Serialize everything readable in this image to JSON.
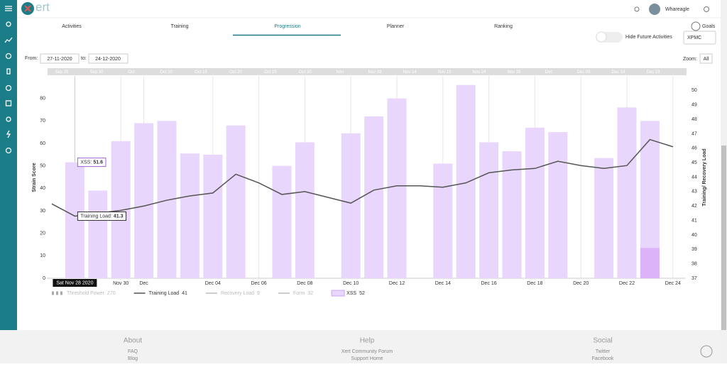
{
  "app": {
    "logo": "ert",
    "user": "Whareagle",
    "tabs": [
      "Activities",
      "Training",
      "Progression",
      "Planner",
      "Ranking"
    ],
    "goals": "Goals",
    "hide_future": "Hide Future Activities",
    "metric": "XPMC",
    "from_label": "From:",
    "from": "27-11-2020",
    "to_label": "to:",
    "to": "24-12-2020",
    "zoom_label": "Zoom:",
    "zoom": "All",
    "navigator": [
      "Sep 25",
      "Sep 30",
      "Oct",
      "Oct 10",
      "Oct 15",
      "Oct 20",
      "Oct 25",
      "Oct 30",
      "Nov",
      "Nov 09",
      "Nov 14",
      "Nov 19",
      "Nov 24",
      "Nov 29",
      "Dec",
      "Dec 09",
      "Dec 14",
      "Dec 19"
    ],
    "footer": [
      {
        "title": "About",
        "links": [
          "FAQ",
          "Blog"
        ]
      },
      {
        "title": "Help",
        "links": [
          "Xert Community Forum",
          "Support Home"
        ]
      },
      {
        "title": "Social",
        "links": [
          "Twitter",
          "Facebook"
        ]
      }
    ]
  },
  "chart_data": {
    "type": "bar",
    "categories": [
      null,
      null,
      null,
      "Nov 30",
      "Dec",
      null,
      null,
      "Dec 04",
      null,
      "Dec 06",
      null,
      "Dec 08",
      null,
      "Dec 10",
      null,
      "Dec 12",
      null,
      "Dec 14",
      null,
      "Dec 16",
      null,
      "Dec 18",
      null,
      "Dec 20",
      null,
      "Dec 22",
      null,
      "Dec 24"
    ],
    "ylabel": "Strain Score",
    "y2label": "Training/ Recovery Load",
    "ylim": [
      0,
      90
    ],
    "yticks": [
      0,
      10,
      20,
      30,
      40,
      50,
      60,
      70,
      80
    ],
    "y2lim": [
      37,
      51
    ],
    "y2ticks": [
      37,
      38,
      39,
      40,
      41,
      42,
      43,
      44,
      45,
      46,
      47,
      48,
      49,
      50
    ],
    "grid": true,
    "series": [
      {
        "name": "Threshold Power",
        "type": "line",
        "visible": false,
        "color": "#bbbbbb",
        "legend_value": 270
      },
      {
        "name": "Training Load",
        "type": "line",
        "axis": "y2",
        "visible": true,
        "color": "#555555",
        "legend_value": 41,
        "values": [
          42.15,
          41.3,
          41.5,
          41.7,
          42.0,
          42.4,
          42.7,
          42.9,
          44.2,
          43.6,
          42.8,
          43.0,
          42.6,
          42.2,
          43.1,
          43.4,
          43.4,
          43.3,
          43.6,
          44.3,
          44.5,
          44.6,
          45.1,
          44.8,
          44.6,
          44.8,
          46.6,
          46.1
        ]
      },
      {
        "name": "Recovery Load",
        "type": "line",
        "visible": false,
        "color": "#bbbbbb",
        "legend_value": 9
      },
      {
        "name": "Form",
        "type": "line",
        "visible": false,
        "color": "#bbbbbb",
        "legend_value": 32
      },
      {
        "name": "XSS",
        "type": "bar",
        "visible": true,
        "color": "#e9d6fc",
        "legend_value": 52,
        "values": [
          null,
          51.6,
          39,
          61,
          69,
          70,
          55.5,
          55,
          68,
          null,
          50,
          60.5,
          null,
          64.5,
          72,
          80,
          null,
          51,
          86,
          60.5,
          56.5,
          67,
          65,
          null,
          53.5,
          76,
          70,
          null
        ]
      },
      {
        "type": "bar",
        "visible": true,
        "color": "#dcb2f8",
        "values": [
          null,
          null,
          null,
          null,
          null,
          null,
          null,
          null,
          null,
          null,
          null,
          null,
          null,
          null,
          null,
          null,
          null,
          null,
          null,
          null,
          null,
          null,
          null,
          null,
          null,
          null,
          13.5,
          null
        ]
      }
    ],
    "tooltips": [
      {
        "label": "XSS:"
      },
      {
        "label": "Training Load:"
      }
    ],
    "crosshair_label": "Sat Nov 28 2020"
  }
}
